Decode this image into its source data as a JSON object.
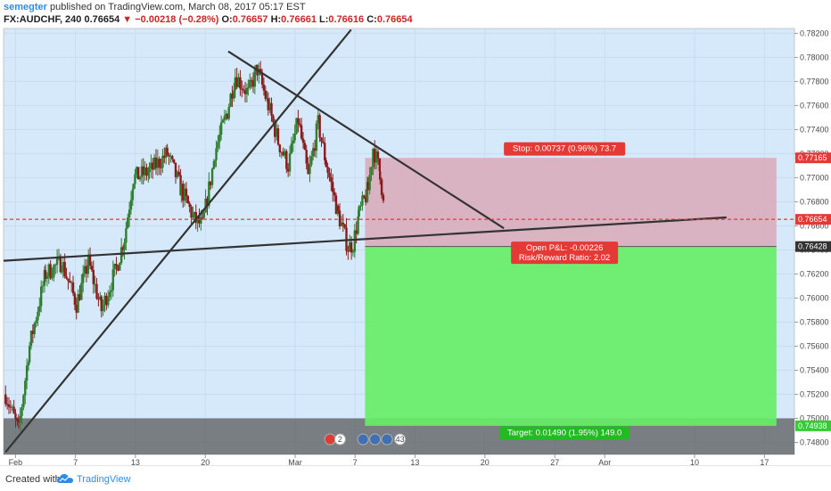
{
  "header": {
    "publisher_user": "semegter",
    "publisher_text": " published on TradingView.com, March 08, 2017 05:17 EST",
    "symbol": "FX:AUDCHF, 240",
    "last": "0.76654",
    "change": "▼ −0.00218 (−0.28%)",
    "open_label": "O:",
    "open": "0.76657",
    "high_label": "H:",
    "high": "0.76661",
    "low_label": "L:",
    "low": "0.76616",
    "close_label": "C:",
    "close": "0.76654"
  },
  "footer": {
    "created_with": "Created with",
    "brand": "TradingView"
  },
  "colors": {
    "plot_bg": "#d6e9fb",
    "bull": "#2f7d2f",
    "bear": "#8b1a1a",
    "stop_zone": "#dba9b7",
    "target_zone": "#67ee67",
    "current_line": "#e53935",
    "trendline": "#333333"
  },
  "chart_data": {
    "type": "candlestick",
    "title": "",
    "ylim": [
      0.747,
      0.7824
    ],
    "y_ticks": [
      "0.78200",
      "0.78000",
      "0.77800",
      "0.77600",
      "0.77400",
      "0.77200",
      "0.77000",
      "0.76800",
      "0.76600",
      "0.76400",
      "0.76200",
      "0.76000",
      "0.75800",
      "0.75600",
      "0.75400",
      "0.75200",
      "0.75000",
      "0.74800"
    ],
    "x_ticks": [
      {
        "label": "Feb",
        "d": 0
      },
      {
        "label": "7",
        "d": 6
      },
      {
        "label": "13",
        "d": 12
      },
      {
        "label": "20",
        "d": 19
      },
      {
        "label": "Mar",
        "d": 28
      },
      {
        "label": "7",
        "d": 34
      },
      {
        "label": "13",
        "d": 40
      },
      {
        "label": "20",
        "d": 47
      },
      {
        "label": "27",
        "d": 54
      },
      {
        "label": "Apr",
        "d": 59
      },
      {
        "label": "10",
        "d": 68
      },
      {
        "label": "17",
        "d": 75
      }
    ],
    "x_range_days": [
      -1.2,
      78
    ],
    "price_labels": [
      {
        "value": 0.77165,
        "text": "0.77165",
        "color": "#e53935"
      },
      {
        "value": 0.76654,
        "text": "0.76654",
        "color": "#e53935"
      },
      {
        "value": 0.76428,
        "text": "0.76428",
        "color": "#333333"
      },
      {
        "value": 0.74938,
        "text": "0.74938",
        "color": "#33cc33"
      }
    ],
    "position": {
      "entry": 0.76428,
      "stop": 0.77165,
      "target": 0.74938,
      "start_day": 35.0,
      "end_day": 76.2,
      "stop_label": "Stop: 0.00737 (0.96%) 73.7",
      "pnl_label": "Open P&L: -0.00226",
      "rr_label": "Risk/Reward Ratio: 2.02",
      "target_label": "Target: 0.01490 (1.95%) 149.0"
    },
    "current_price": 0.76654,
    "support_zone": [
      0.747,
      0.75
    ],
    "trendlines": [
      {
        "from": [
          -1.2,
          0.7631
        ],
        "to": [
          71.2,
          0.7667
        ]
      },
      {
        "from": [
          -1.0,
          0.7472
        ],
        "to": [
          33.6,
          0.7823
        ]
      },
      {
        "from": [
          21.3,
          0.7805
        ],
        "to": [
          48.9,
          0.7658
        ]
      }
    ],
    "candle_anchors": [
      [
        -1.0,
        0.752
      ],
      [
        0.3,
        0.749
      ],
      [
        1.4,
        0.756
      ],
      [
        3.0,
        0.762
      ],
      [
        4.6,
        0.763
      ],
      [
        6.1,
        0.7595
      ],
      [
        7.3,
        0.763
      ],
      [
        8.6,
        0.759
      ],
      [
        10.1,
        0.7625
      ],
      [
        10.9,
        0.765
      ],
      [
        11.8,
        0.77
      ],
      [
        13.4,
        0.7705
      ],
      [
        15.2,
        0.772
      ],
      [
        16.6,
        0.769
      ],
      [
        17.9,
        0.7665
      ],
      [
        18.7,
        0.766
      ],
      [
        20.1,
        0.7725
      ],
      [
        21.2,
        0.7755
      ],
      [
        22.0,
        0.7785
      ],
      [
        23.3,
        0.777
      ],
      [
        24.2,
        0.779
      ],
      [
        25.3,
        0.776
      ],
      [
        26.3,
        0.773
      ],
      [
        27.3,
        0.771
      ],
      [
        28.3,
        0.7748
      ],
      [
        29.3,
        0.77
      ],
      [
        30.3,
        0.7745
      ],
      [
        31.1,
        0.7712
      ],
      [
        32.3,
        0.767
      ],
      [
        33.3,
        0.7642
      ],
      [
        33.8,
        0.7645
      ],
      [
        34.4,
        0.767
      ],
      [
        35.3,
        0.769
      ],
      [
        35.8,
        0.7725
      ],
      [
        36.5,
        0.7705
      ],
      [
        37.0,
        0.7665
      ]
    ],
    "events": [
      {
        "label": "",
        "day": 31.5,
        "kind": "add"
      },
      {
        "label": "2",
        "day": 32.5,
        "kind": "count"
      },
      {
        "label": "",
        "day": 34.8,
        "kind": "flag"
      },
      {
        "label": "",
        "day": 36.0,
        "kind": "flag"
      },
      {
        "label": "",
        "day": 37.2,
        "kind": "flag"
      },
      {
        "label": "43",
        "day": 38.5,
        "kind": "count"
      }
    ]
  }
}
